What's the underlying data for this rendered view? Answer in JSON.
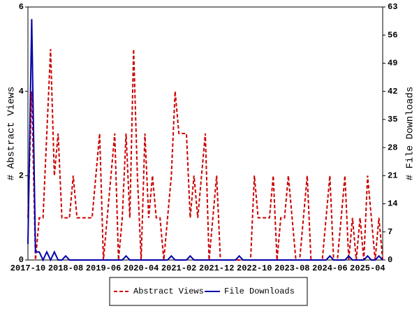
{
  "chart_data": {
    "type": "line",
    "y_label": "# Abstract Views",
    "y2_label": "# File Downloads",
    "categories": [
      "2017-10",
      null,
      null,
      null,
      null,
      null,
      null,
      null,
      null,
      null,
      "2018-08",
      null,
      null,
      null,
      null,
      null,
      null,
      null,
      null,
      null,
      "2019-06",
      null,
      null,
      null,
      null,
      null,
      null,
      null,
      null,
      null,
      "2020-04",
      null,
      null,
      null,
      null,
      null,
      null,
      null,
      null,
      null,
      "2021-02",
      null,
      null,
      null,
      null,
      null,
      null,
      null,
      null,
      null,
      "2021-12",
      null,
      null,
      null,
      null,
      null,
      null,
      null,
      null,
      null,
      "2022-10",
      null,
      null,
      null,
      null,
      null,
      null,
      null,
      null,
      null,
      "2023-08",
      null,
      null,
      null,
      null,
      null,
      null,
      null,
      null,
      null,
      "2024-06",
      null,
      null,
      null,
      null,
      null,
      null,
      null,
      null,
      null,
      "2025-04",
      null,
      null,
      null,
      null
    ],
    "series": [
      {
        "name": "Abstract Views",
        "color": "#cc0000",
        "dashed": true,
        "axis": "y",
        "values": [
          1,
          4,
          0,
          1,
          1,
          3,
          5,
          2,
          3,
          1,
          1,
          1,
          2,
          1,
          1,
          1,
          1,
          1,
          2,
          3,
          0,
          1,
          2,
          3,
          0,
          1,
          3,
          1,
          5,
          2,
          0,
          3,
          1,
          2,
          1,
          1,
          0,
          1,
          2,
          4,
          3,
          3,
          3,
          1,
          2,
          1,
          2,
          3,
          0,
          1,
          2,
          0,
          0,
          0,
          0,
          0,
          0,
          0,
          0,
          0,
          2,
          1,
          1,
          1,
          1,
          2,
          0,
          1,
          1,
          2,
          1,
          0,
          0,
          1,
          2,
          0,
          0,
          0,
          0,
          1,
          2,
          0,
          0,
          1,
          2,
          0,
          1,
          0,
          1,
          0,
          2,
          1,
          0,
          1,
          0
        ]
      },
      {
        "name": "File Downloads",
        "color": "#0000aa",
        "dashed": false,
        "axis": "y2",
        "values": [
          4,
          60,
          2,
          2,
          0,
          2,
          0,
          2,
          0,
          0,
          1,
          0,
          0,
          0,
          0,
          0,
          0,
          0,
          0,
          0,
          0,
          0,
          0,
          0,
          0,
          0,
          1,
          0,
          0,
          0,
          0,
          0,
          0,
          0,
          0,
          0,
          0,
          0,
          1,
          0,
          0,
          0,
          0,
          1,
          0,
          0,
          0,
          0,
          0,
          0,
          0,
          0,
          0,
          0,
          0,
          0,
          1,
          0,
          0,
          0,
          0,
          0,
          0,
          0,
          0,
          0,
          0,
          0,
          0,
          0,
          0,
          0,
          0,
          0,
          0,
          0,
          0,
          0,
          0,
          0,
          1,
          0,
          0,
          0,
          0,
          1,
          0,
          0,
          0,
          0,
          1,
          0,
          0,
          1,
          0
        ]
      }
    ],
    "ylim": [
      0,
      6
    ],
    "yticks": [
      0,
      2,
      4,
      6
    ],
    "y2lim": [
      0,
      63
    ],
    "y2ticks": [
      0,
      7,
      14,
      21,
      28,
      35,
      42,
      49,
      56,
      63
    ],
    "legend": "bottom"
  }
}
